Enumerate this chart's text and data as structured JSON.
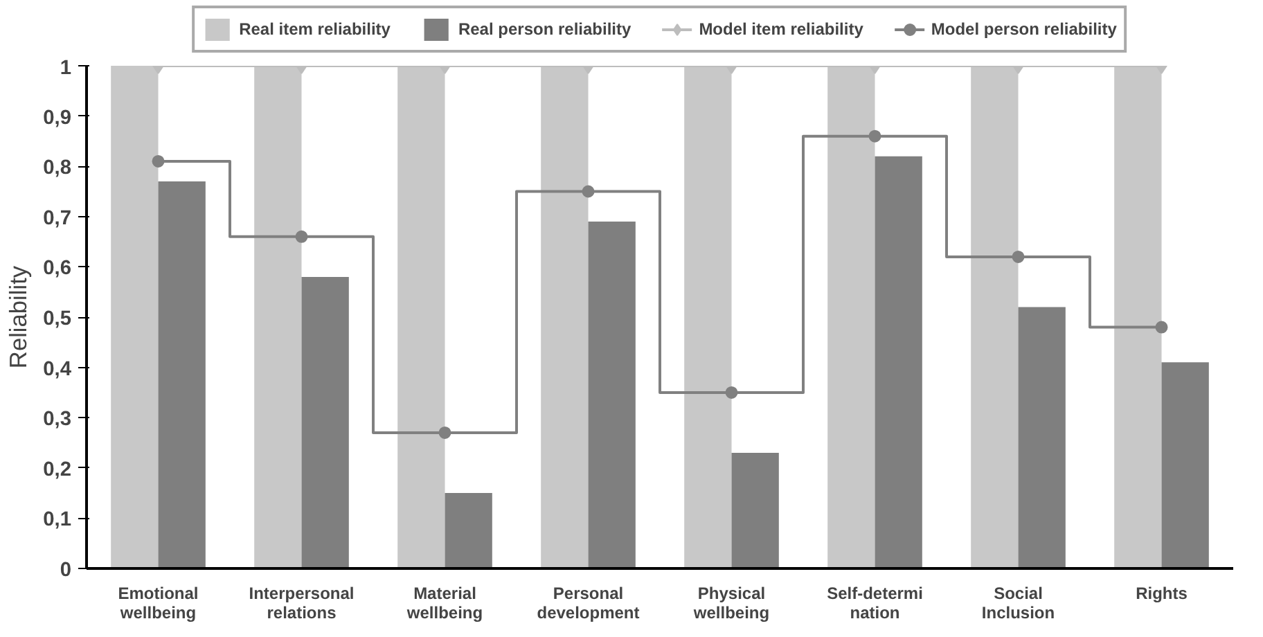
{
  "chart_data": {
    "type": "bar",
    "ylabel": "Reliability",
    "categories": [
      "Emotional\nwellbeing",
      "Interpersonal\nrelations",
      "Material\nwellbeing",
      "Personal\ndevelopment",
      "Physical\nwellbeing",
      "Self-determi\nnation",
      "Social\nInclusion",
      "Rights"
    ],
    "series": [
      {
        "name": "Real item reliability",
        "color": "#c8c8c8",
        "values": [
          1,
          1,
          1,
          1,
          1,
          1,
          1,
          1
        ]
      },
      {
        "name": "Real person reliability",
        "color": "#7f7f7f",
        "values": [
          0.77,
          0.58,
          0.15,
          0.69,
          0.23,
          0.82,
          0.52,
          0.41
        ]
      },
      {
        "name": "Model item reliability",
        "type": "step",
        "marker": "diamond",
        "color": "#bdbdbd",
        "values": [
          1,
          1,
          1,
          1,
          1,
          1,
          1,
          1
        ]
      },
      {
        "name": "Model person reliability",
        "type": "step",
        "marker": "circle",
        "color": "#808080",
        "values": [
          0.81,
          0.66,
          0.27,
          0.75,
          0.35,
          0.86,
          0.62,
          0.48
        ]
      }
    ],
    "ylim": [
      0,
      1
    ],
    "yticks": [
      0,
      {
        "value": 0.1,
        "label": "0,1"
      },
      {
        "value": 0.2,
        "label": "0,2"
      },
      {
        "value": 0.3,
        "label": "0,3"
      },
      {
        "value": 0.4,
        "label": "0,4"
      },
      {
        "value": 0.5,
        "label": "0,5"
      },
      {
        "value": 0.6,
        "label": "0,6"
      },
      {
        "value": 0.7,
        "label": "0,7"
      },
      {
        "value": 0.8,
        "label": "0,8"
      },
      {
        "value": 0.9,
        "label": "0,9"
      },
      1
    ],
    "grid": false,
    "legend": "top"
  }
}
